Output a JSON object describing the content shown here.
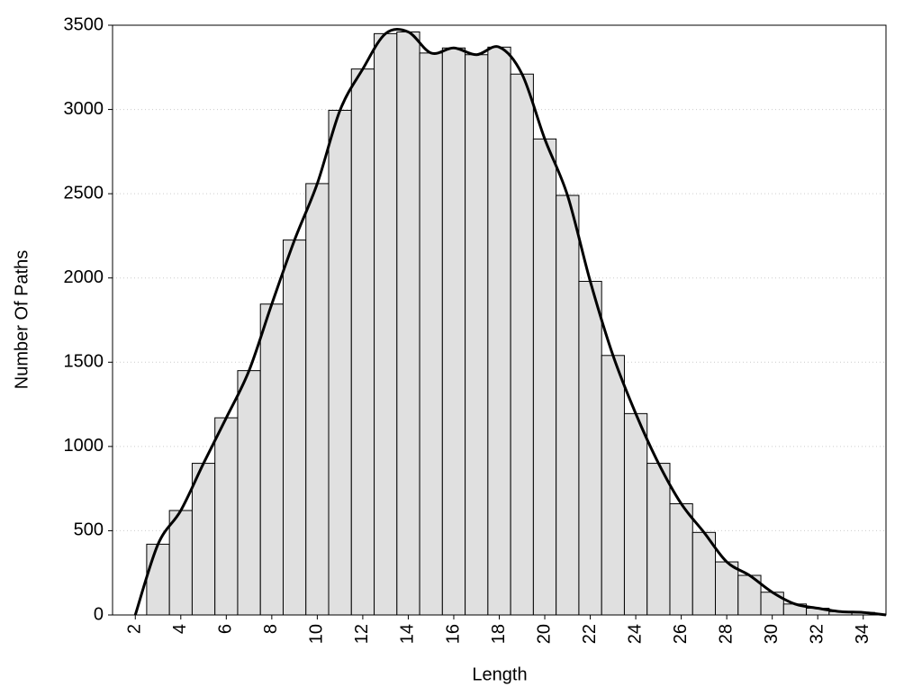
{
  "chart_data": {
    "type": "histogram",
    "xlabel": "Length",
    "ylabel": "Number Of Paths",
    "bins": [
      2.5,
      3.5,
      4.5,
      5.5,
      6.5,
      7.5,
      8.5,
      9.5,
      10.5,
      11.5,
      12.5,
      13.5,
      14.5,
      15.5,
      16.5,
      17.5,
      18.5,
      19.5,
      20.5,
      21.5,
      22.5,
      23.5,
      24.5,
      25.5,
      26.5,
      27.5,
      28.5,
      29.5,
      30.5,
      31.5,
      32.5,
      33.5,
      34.5
    ],
    "values": [
      420,
      620,
      900,
      1170,
      1450,
      1845,
      2225,
      2560,
      2995,
      3240,
      3450,
      3460,
      3335,
      3365,
      3325,
      3370,
      3210,
      2825,
      2490,
      1980,
      1540,
      1195,
      900,
      660,
      490,
      315,
      235,
      135,
      65,
      40,
      20,
      15
    ],
    "color": "#e0e0e0",
    "curve": {
      "x": [
        2,
        3,
        4,
        5,
        6,
        7,
        8,
        9,
        10,
        11,
        12,
        13,
        14,
        15,
        16,
        17,
        18,
        19,
        20,
        21,
        22,
        23,
        24,
        25,
        26,
        27,
        28,
        29,
        30,
        31,
        32,
        33,
        34,
        35
      ],
      "values": [
        0,
        420,
        620,
        900,
        1170,
        1450,
        1845,
        2225,
        2560,
        2995,
        3240,
        3450,
        3460,
        3335,
        3365,
        3325,
        3370,
        3210,
        2825,
        2490,
        1980,
        1540,
        1195,
        900,
        660,
        490,
        315,
        235,
        135,
        65,
        40,
        20,
        15,
        0
      ],
      "color": "#000000"
    },
    "xlim": [
      1,
      35
    ],
    "ylim": [
      0,
      3500
    ],
    "xticks": [
      2,
      4,
      6,
      8,
      10,
      12,
      14,
      16,
      18,
      20,
      22,
      24,
      26,
      28,
      30,
      32,
      34
    ],
    "yticks": [
      0,
      500,
      1000,
      1500,
      2000,
      2500,
      3000,
      3500
    ],
    "grid": true
  }
}
